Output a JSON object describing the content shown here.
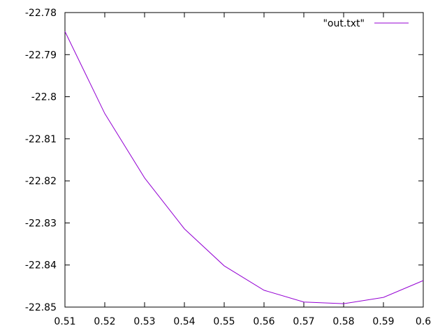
{
  "chart_data": {
    "type": "line",
    "title": "",
    "xlabel": "",
    "ylabel": "",
    "xlim": [
      0.51,
      0.6
    ],
    "ylim": [
      -22.85,
      -22.78
    ],
    "grid": false,
    "legend": "top-right",
    "x_ticks": [
      0.51,
      0.52,
      0.53,
      0.54,
      0.55,
      0.56,
      0.57,
      0.58,
      0.59,
      0.6
    ],
    "x_tick_labels": [
      "0.51",
      "0.52",
      "0.53",
      "0.54",
      "0.55",
      "0.56",
      "0.57",
      "0.58",
      "0.59",
      "0.6"
    ],
    "y_ticks": [
      -22.78,
      -22.79,
      -22.8,
      -22.81,
      -22.82,
      -22.83,
      -22.84,
      -22.85
    ],
    "y_tick_labels": [
      "-22.78",
      "-22.79",
      "-22.8",
      "-22.81",
      "-22.82",
      "-22.83",
      "-22.84",
      "-22.85"
    ],
    "series": [
      {
        "name": "\"out.txt\"",
        "color": "#9400d3",
        "x": [
          0.51,
          0.52,
          0.53,
          0.54,
          0.55,
          0.56,
          0.57,
          0.58,
          0.59,
          0.6
        ],
        "y": [
          -22.7845,
          -22.804,
          -22.8193,
          -22.8314,
          -22.8402,
          -22.846,
          -22.8488,
          -22.8492,
          -22.8477,
          -22.8437
        ]
      }
    ]
  }
}
